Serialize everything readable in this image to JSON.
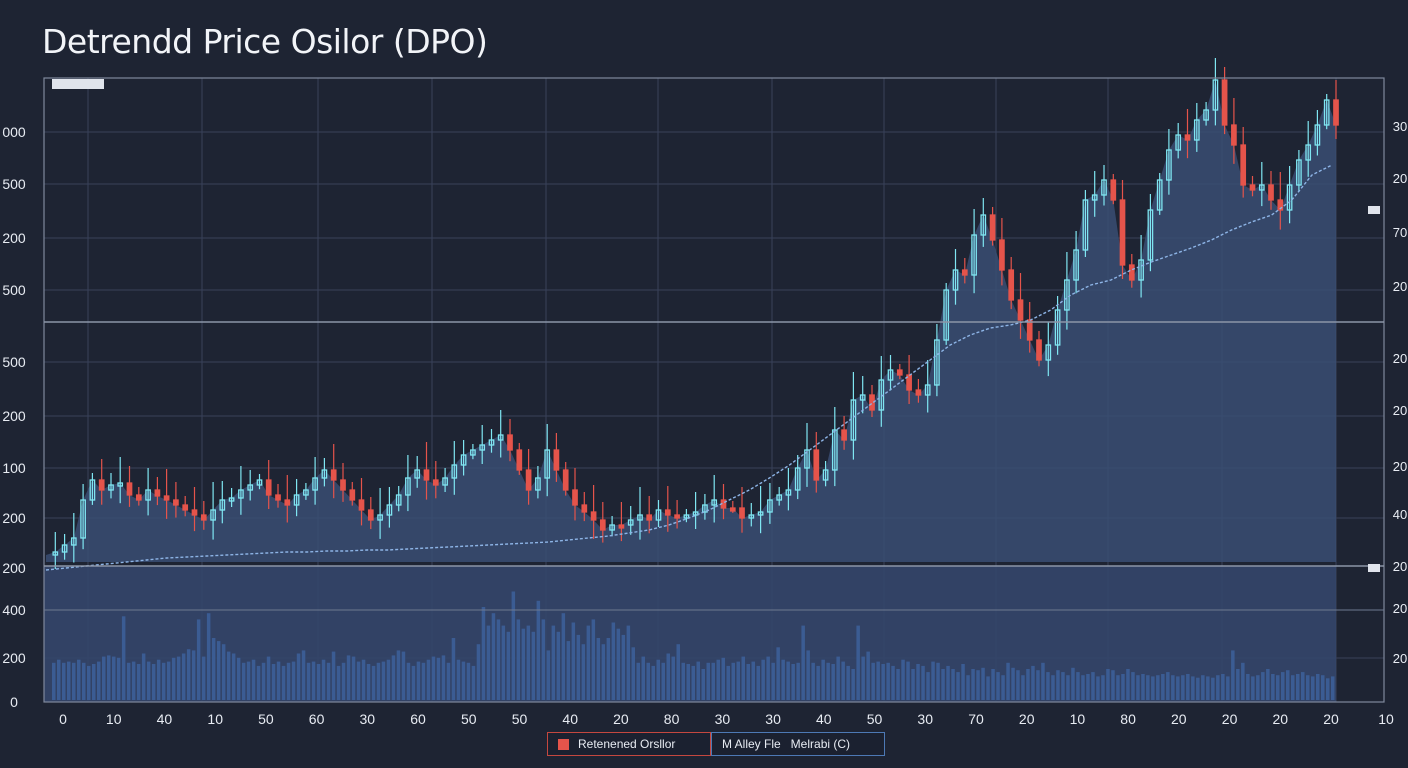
{
  "title": "Detrendd Price Osilor (DPO)",
  "legend": {
    "items": [
      {
        "label": "Retenened Orsllor",
        "color": "#e5544b"
      },
      {
        "label": "M Alley Fle   Melrabi (C)",
        "color": "#5d8bd0"
      }
    ]
  },
  "colors": {
    "background": "#1e2433",
    "area_fill": "#3a4d73",
    "up_candle": "#7fe6f2",
    "down_candle": "#e5544b",
    "volume": "#3b5c93",
    "grid": "#39425a",
    "divider": "#8b95a8",
    "ma_line": "#8db4e6"
  },
  "chart_data": {
    "type": "line",
    "title": "Detrendd Price Osilor (DPO)",
    "grid": true,
    "x_tick_labels": [
      "0",
      "10",
      "40",
      "10",
      "50",
      "60",
      "30",
      "60",
      "50",
      "50",
      "40",
      "20",
      "80",
      "30",
      "30",
      "40",
      "50",
      "30",
      "70",
      "20",
      "10",
      "80",
      "20",
      "20",
      "20",
      "20",
      "10"
    ],
    "left_axis_top_panel": [
      "000",
      "500",
      "200",
      "500"
    ],
    "left_axis_mid_panel": [
      "500",
      "200",
      "100",
      "200"
    ],
    "left_axis_bottom_panel": [
      "200",
      "400",
      "200",
      "0"
    ],
    "right_axis_top_panel": [
      "30",
      "20",
      "70",
      "20"
    ],
    "right_axis_mid_panel": [
      "20",
      "20",
      "20",
      "40",
      "20"
    ],
    "right_axis_bottom_panel": [
      "20",
      "20"
    ],
    "price_close_series": [
      555,
      552,
      545,
      538,
      500,
      480,
      490,
      485,
      483,
      495,
      500,
      490,
      496,
      500,
      505,
      510,
      515,
      520,
      510,
      500,
      498,
      490,
      485,
      480,
      495,
      500,
      505,
      495,
      490,
      478,
      470,
      480,
      490,
      500,
      510,
      520,
      515,
      505,
      495,
      478,
      470,
      480,
      485,
      478,
      465,
      455,
      450,
      445,
      440,
      435,
      450,
      470,
      490,
      478,
      450,
      470,
      490,
      505,
      512,
      520,
      530,
      525,
      525,
      520,
      515,
      520,
      510,
      515,
      518,
      515,
      512,
      505,
      500,
      508,
      508,
      518,
      515,
      512,
      500,
      495,
      490,
      468,
      450,
      480,
      470,
      430,
      440,
      400,
      395,
      410,
      380,
      370,
      375,
      390,
      395,
      385,
      340,
      290,
      270,
      275,
      235,
      215,
      240,
      270,
      300,
      320,
      340,
      360,
      345,
      310,
      280,
      250,
      200,
      195,
      180,
      200,
      265,
      280,
      260,
      210,
      180,
      150,
      135,
      140,
      120,
      110,
      80,
      125,
      145,
      185,
      190,
      185,
      200,
      210,
      185,
      160,
      145,
      125,
      100,
      125
    ],
    "ma_series": [
      570,
      568,
      566,
      564,
      562,
      560,
      558,
      557,
      556,
      555,
      554,
      553,
      552,
      552,
      551,
      551,
      550,
      550,
      549,
      548,
      547,
      546,
      545,
      544,
      543,
      542,
      540,
      538,
      536,
      533,
      530,
      525,
      518,
      510,
      500,
      490,
      478,
      465,
      450,
      435,
      420,
      405,
      390,
      375,
      360,
      345,
      335,
      328,
      325,
      320,
      310,
      295,
      285,
      280,
      270,
      262,
      255,
      248,
      240,
      230,
      222,
      215,
      200,
      175,
      165
    ],
    "volume_series": [
      60,
      65,
      60,
      62,
      60,
      65,
      60,
      55,
      58,
      62,
      70,
      72,
      70,
      68,
      135,
      60,
      62,
      58,
      75,
      62,
      58,
      65,
      60,
      62,
      68,
      70,
      75,
      82,
      80,
      130,
      70,
      140,
      100,
      95,
      90,
      78,
      75,
      68,
      60,
      62,
      65,
      55,
      60,
      70,
      58,
      62,
      55,
      60,
      62,
      75,
      80,
      60,
      62,
      58,
      65,
      60,
      78,
      55,
      60,
      72,
      70,
      62,
      65,
      58,
      55,
      60,
      62,
      65,
      72,
      80,
      78,
      60,
      55,
      62,
      60,
      65,
      70,
      68,
      72,
      60,
      100,
      65,
      62,
      60,
      55,
      90,
      150,
      120,
      140,
      130,
      120,
      110,
      175,
      130,
      115,
      120,
      110,
      160,
      130,
      80,
      120,
      110,
      140,
      95,
      125,
      105,
      90,
      120,
      130,
      100,
      90,
      100,
      125,
      115,
      105,
      120,
      85,
      60,
      70,
      60,
      55,
      65,
      60,
      75,
      70,
      90,
      60,
      58,
      55,
      62,
      50,
      60,
      60,
      65,
      68,
      55,
      60,
      62,
      70,
      58,
      62,
      55,
      65,
      70,
      60,
      85,
      65,
      62,
      58,
      60,
      120,
      80,
      60,
      55,
      65,
      60,
      58,
      70,
      62,
      55,
      50,
      120,
      70,
      78,
      60,
      62,
      58,
      60,
      55,
      50,
      65,
      62,
      50,
      58,
      55,
      45,
      62,
      60,
      50,
      55,
      50,
      45,
      58,
      40,
      50,
      48,
      52,
      38,
      50,
      45,
      40,
      60,
      52,
      48,
      40,
      50,
      55,
      48,
      60,
      45,
      40,
      48,
      45,
      40,
      52,
      45,
      40,
      42,
      45,
      38,
      40,
      50,
      48,
      40,
      42,
      50,
      45,
      40,
      42,
      40,
      38,
      40,
      42,
      45,
      40,
      38,
      40,
      42,
      38,
      36,
      40,
      38,
      36,
      40,
      42,
      38,
      80,
      50,
      60,
      42,
      38,
      40,
      45,
      50,
      42,
      40,
      45,
      48,
      40,
      42,
      45,
      40,
      38,
      42,
      40,
      35,
      38
    ]
  }
}
